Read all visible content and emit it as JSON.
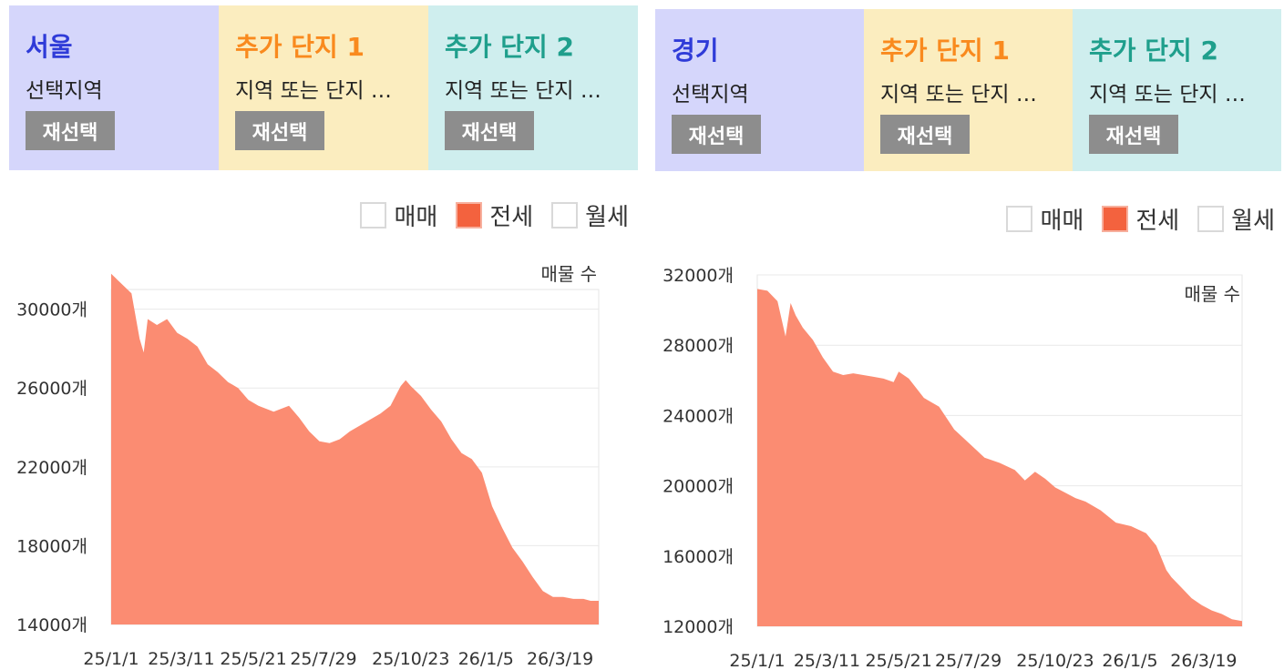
{
  "panels": [
    {
      "region": {
        "name": "서울",
        "sub": "선택지역",
        "btn": "재선택",
        "color": "#2f3bd8",
        "bg": "#d5d6fb"
      },
      "complex1": {
        "name": "추가 단지 1",
        "sub": "지역 또는 단지 …",
        "btn": "재선택",
        "color": "#f98a1e",
        "bg": "#fbedbf"
      },
      "complex2": {
        "name": "추가 단지 2",
        "sub": "지역 또는 단지 …",
        "btn": "재선택",
        "color": "#1f9f8c",
        "bg": "#cfeeee"
      },
      "legend": [
        {
          "label": "매매",
          "checked": false
        },
        {
          "label": "전세",
          "checked": true
        },
        {
          "label": "월세",
          "checked": false
        }
      ]
    },
    {
      "region": {
        "name": "경기",
        "sub": "선택지역",
        "btn": "재선택",
        "color": "#2f3bd8",
        "bg": "#d5d6fb"
      },
      "complex1": {
        "name": "추가 단지 1",
        "sub": "지역 또는 단지 …",
        "btn": "재선택",
        "color": "#f98a1e",
        "bg": "#fbedbf"
      },
      "complex2": {
        "name": "추가 단지 2",
        "sub": "지역 또는 단지 …",
        "btn": "재선택",
        "color": "#1f9f8c",
        "bg": "#cfeeee"
      },
      "legend": [
        {
          "label": "매매",
          "checked": false
        },
        {
          "label": "전세",
          "checked": true
        },
        {
          "label": "월세",
          "checked": false
        }
      ]
    }
  ],
  "chart_data": [
    {
      "type": "area",
      "unit_label": "매물 수",
      "color": "#fb8c72",
      "ylim": [
        14000,
        31000
      ],
      "yticks": [
        14000,
        18000,
        22000,
        26000,
        30000
      ],
      "ytick_labels": [
        "14000개",
        "18000개",
        "22000개",
        "26000개",
        "30000개"
      ],
      "xtick_labels": [
        "25/1/1",
        "25/3/11",
        "25/5/21",
        "25/7/29",
        "25/10/23",
        "26/1/5",
        "26/3/19"
      ],
      "xtick_days": [
        0,
        69,
        140,
        209,
        295,
        369,
        442
      ],
      "x_end_day": 480,
      "series": [
        {
          "x": [
            0,
            10,
            20,
            28,
            32,
            36,
            45,
            55,
            65,
            75,
            85,
            95,
            105,
            115,
            125,
            135,
            145,
            160,
            175,
            185,
            195,
            205,
            215,
            225,
            235,
            245,
            255,
            265,
            275,
            285,
            290,
            295,
            305,
            315,
            325,
            335,
            345,
            355,
            365,
            375,
            385,
            395,
            405,
            415,
            425,
            435,
            445,
            455,
            465,
            472,
            480
          ],
          "y": [
            31800,
            31300,
            30800,
            28500,
            27800,
            29500,
            29200,
            29500,
            28800,
            28500,
            28100,
            27200,
            26800,
            26300,
            26000,
            25400,
            25100,
            24800,
            25100,
            24500,
            23800,
            23300,
            23200,
            23400,
            23800,
            24100,
            24400,
            24700,
            25100,
            26100,
            26400,
            26100,
            25600,
            24900,
            24300,
            23400,
            22700,
            22400,
            21700,
            20000,
            18900,
            17900,
            17200,
            16400,
            15700,
            15400,
            15400,
            15300,
            15300,
            15200,
            15200
          ]
        }
      ]
    },
    {
      "type": "area",
      "unit_label": "매물 수",
      "color": "#fb8c72",
      "ylim": [
        12000,
        32000
      ],
      "yticks": [
        12000,
        16000,
        20000,
        24000,
        28000,
        32000
      ],
      "ytick_labels": [
        "12000개",
        "16000개",
        "20000개",
        "24000개",
        "28000개",
        "32000개"
      ],
      "xtick_labels": [
        "25/1/1",
        "25/3/11",
        "25/5/21",
        "25/7/29",
        "25/10/23",
        "26/1/5",
        "26/3/19"
      ],
      "xtick_days": [
        0,
        69,
        140,
        209,
        295,
        369,
        442
      ],
      "x_end_day": 480,
      "series": [
        {
          "x": [
            0,
            10,
            20,
            28,
            33,
            38,
            45,
            55,
            65,
            75,
            85,
            95,
            105,
            115,
            125,
            135,
            140,
            150,
            165,
            180,
            195,
            210,
            225,
            240,
            255,
            265,
            275,
            285,
            295,
            305,
            315,
            325,
            340,
            355,
            370,
            385,
            395,
            405,
            410,
            420,
            430,
            440,
            450,
            460,
            470,
            480
          ],
          "y": [
            31200,
            31100,
            30500,
            28500,
            30400,
            29700,
            29000,
            28300,
            27300,
            26500,
            26300,
            26400,
            26300,
            26200,
            26100,
            25900,
            26500,
            26100,
            25000,
            24500,
            23200,
            22400,
            21600,
            21300,
            20900,
            20300,
            20800,
            20400,
            19900,
            19600,
            19300,
            19100,
            18600,
            17900,
            17700,
            17300,
            16600,
            15200,
            14800,
            14200,
            13600,
            13200,
            12900,
            12700,
            12400,
            12300
          ]
        }
      ]
    }
  ]
}
